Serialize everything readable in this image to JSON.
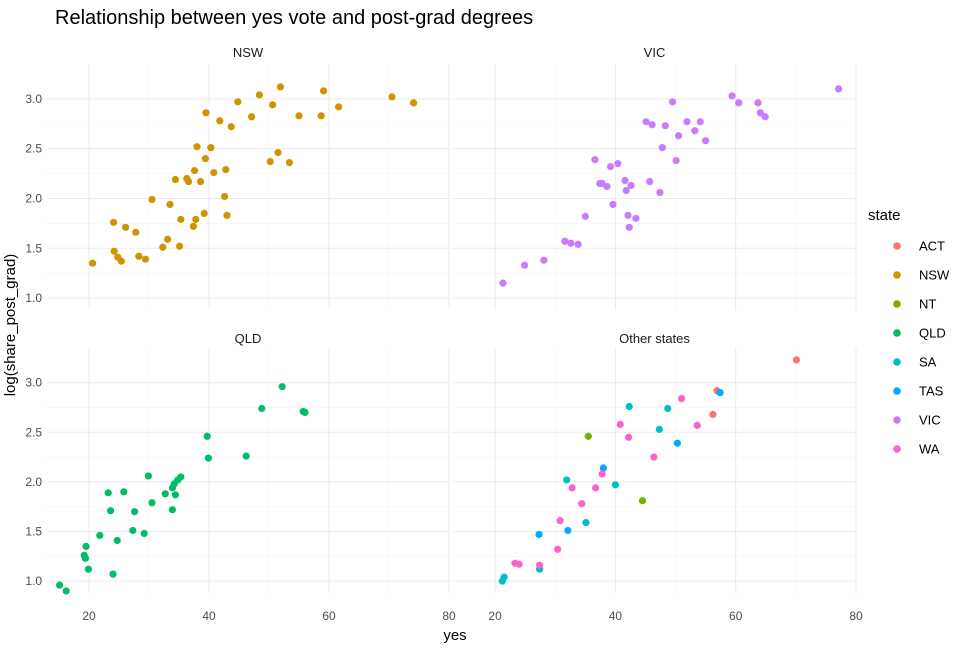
{
  "chart_data": {
    "type": "scatter",
    "title": "Relationship between yes vote and post-grad degrees",
    "xlabel": "yes",
    "ylabel": "log(share_post_grad)",
    "xlim": [
      13,
      80
    ],
    "ylim": [
      0.88,
      3.35
    ],
    "x_ticks": [
      20,
      40,
      60,
      80
    ],
    "y_ticks": [
      1.0,
      1.5,
      2.0,
      2.5,
      3.0
    ],
    "x_tick_labels": [
      "20",
      "40",
      "60",
      "80"
    ],
    "y_tick_labels": [
      "1.0",
      "1.5",
      "2.0",
      "2.5",
      "3.0"
    ],
    "grid": true,
    "legend_position": "right",
    "legend_title": "state",
    "legend": [
      {
        "name": "ACT",
        "color": "#F8766D"
      },
      {
        "name": "NSW",
        "color": "#CD9600"
      },
      {
        "name": "NT",
        "color": "#7CAE00"
      },
      {
        "name": "QLD",
        "color": "#00BE67"
      },
      {
        "name": "SA",
        "color": "#00BFC4"
      },
      {
        "name": "TAS",
        "color": "#00A9FF"
      },
      {
        "name": "VIC",
        "color": "#C77CFF"
      },
      {
        "name": "WA",
        "color": "#FF61CC"
      }
    ],
    "facets": [
      {
        "label": "NSW",
        "points": [
          {
            "x": 20.6,
            "y": 1.35,
            "state": "NSW"
          },
          {
            "x": 24.1,
            "y": 1.76,
            "state": "NSW"
          },
          {
            "x": 24.2,
            "y": 1.47,
            "state": "NSW"
          },
          {
            "x": 24.8,
            "y": 1.41,
            "state": "NSW"
          },
          {
            "x": 25.4,
            "y": 1.37,
            "state": "NSW"
          },
          {
            "x": 26.1,
            "y": 1.71,
            "state": "NSW"
          },
          {
            "x": 27.8,
            "y": 1.66,
            "state": "NSW"
          },
          {
            "x": 28.3,
            "y": 1.42,
            "state": "NSW"
          },
          {
            "x": 29.4,
            "y": 1.39,
            "state": "NSW"
          },
          {
            "x": 30.5,
            "y": 1.99,
            "state": "NSW"
          },
          {
            "x": 32.3,
            "y": 1.51,
            "state": "NSW"
          },
          {
            "x": 33.1,
            "y": 1.59,
            "state": "NSW"
          },
          {
            "x": 33.5,
            "y": 1.94,
            "state": "NSW"
          },
          {
            "x": 34.4,
            "y": 2.19,
            "state": "NSW"
          },
          {
            "x": 35.1,
            "y": 1.52,
            "state": "NSW"
          },
          {
            "x": 35.3,
            "y": 1.79,
            "state": "NSW"
          },
          {
            "x": 36.3,
            "y": 2.2,
            "state": "NSW"
          },
          {
            "x": 36.6,
            "y": 2.17,
            "state": "NSW"
          },
          {
            "x": 37.4,
            "y": 1.72,
            "state": "NSW"
          },
          {
            "x": 37.6,
            "y": 2.28,
            "state": "NSW"
          },
          {
            "x": 37.8,
            "y": 1.79,
            "state": "NSW"
          },
          {
            "x": 38.0,
            "y": 2.52,
            "state": "NSW"
          },
          {
            "x": 38.6,
            "y": 2.17,
            "state": "NSW"
          },
          {
            "x": 39.2,
            "y": 1.85,
            "state": "NSW"
          },
          {
            "x": 39.4,
            "y": 2.4,
            "state": "NSW"
          },
          {
            "x": 39.5,
            "y": 2.86,
            "state": "NSW"
          },
          {
            "x": 40.3,
            "y": 2.51,
            "state": "NSW"
          },
          {
            "x": 40.8,
            "y": 2.26,
            "state": "NSW"
          },
          {
            "x": 41.8,
            "y": 2.78,
            "state": "NSW"
          },
          {
            "x": 42.6,
            "y": 2.02,
            "state": "NSW"
          },
          {
            "x": 42.8,
            "y": 2.29,
            "state": "NSW"
          },
          {
            "x": 43.0,
            "y": 1.83,
            "state": "NSW"
          },
          {
            "x": 43.7,
            "y": 2.72,
            "state": "NSW"
          },
          {
            "x": 44.8,
            "y": 2.97,
            "state": "NSW"
          },
          {
            "x": 47.1,
            "y": 2.82,
            "state": "NSW"
          },
          {
            "x": 48.4,
            "y": 3.04,
            "state": "NSW"
          },
          {
            "x": 50.2,
            "y": 2.37,
            "state": "NSW"
          },
          {
            "x": 50.6,
            "y": 2.94,
            "state": "NSW"
          },
          {
            "x": 51.5,
            "y": 2.46,
            "state": "NSW"
          },
          {
            "x": 51.9,
            "y": 3.12,
            "state": "NSW"
          },
          {
            "x": 53.4,
            "y": 2.36,
            "state": "NSW"
          },
          {
            "x": 55.0,
            "y": 2.83,
            "state": "NSW"
          },
          {
            "x": 58.7,
            "y": 2.83,
            "state": "NSW"
          },
          {
            "x": 59.1,
            "y": 3.08,
            "state": "NSW"
          },
          {
            "x": 61.6,
            "y": 2.92,
            "state": "NSW"
          },
          {
            "x": 70.5,
            "y": 3.02,
            "state": "NSW"
          },
          {
            "x": 74.1,
            "y": 2.96,
            "state": "NSW"
          }
        ]
      },
      {
        "label": "VIC",
        "points": [
          {
            "x": 21.3,
            "y": 1.15,
            "state": "VIC"
          },
          {
            "x": 24.9,
            "y": 1.33,
            "state": "VIC"
          },
          {
            "x": 28.1,
            "y": 1.38,
            "state": "VIC"
          },
          {
            "x": 31.6,
            "y": 1.57,
            "state": "VIC"
          },
          {
            "x": 32.6,
            "y": 1.55,
            "state": "VIC"
          },
          {
            "x": 33.8,
            "y": 1.54,
            "state": "VIC"
          },
          {
            "x": 35.0,
            "y": 1.82,
            "state": "VIC"
          },
          {
            "x": 36.6,
            "y": 2.39,
            "state": "VIC"
          },
          {
            "x": 37.4,
            "y": 2.15,
            "state": "VIC"
          },
          {
            "x": 37.8,
            "y": 2.15,
            "state": "VIC"
          },
          {
            "x": 38.6,
            "y": 2.12,
            "state": "VIC"
          },
          {
            "x": 39.2,
            "y": 2.32,
            "state": "VIC"
          },
          {
            "x": 39.6,
            "y": 1.94,
            "state": "VIC"
          },
          {
            "x": 40.4,
            "y": 2.35,
            "state": "VIC"
          },
          {
            "x": 41.6,
            "y": 2.18,
            "state": "VIC"
          },
          {
            "x": 41.8,
            "y": 2.08,
            "state": "VIC"
          },
          {
            "x": 42.1,
            "y": 1.83,
            "state": "VIC"
          },
          {
            "x": 42.3,
            "y": 1.71,
            "state": "VIC"
          },
          {
            "x": 42.6,
            "y": 2.13,
            "state": "VIC"
          },
          {
            "x": 43.4,
            "y": 1.8,
            "state": "VIC"
          },
          {
            "x": 45.1,
            "y": 2.77,
            "state": "VIC"
          },
          {
            "x": 45.7,
            "y": 2.17,
            "state": "VIC"
          },
          {
            "x": 46.1,
            "y": 2.74,
            "state": "VIC"
          },
          {
            "x": 47.4,
            "y": 2.06,
            "state": "VIC"
          },
          {
            "x": 47.8,
            "y": 2.51,
            "state": "VIC"
          },
          {
            "x": 48.3,
            "y": 2.73,
            "state": "VIC"
          },
          {
            "x": 49.5,
            "y": 2.97,
            "state": "VIC"
          },
          {
            "x": 50.1,
            "y": 2.38,
            "state": "VIC"
          },
          {
            "x": 50.5,
            "y": 2.63,
            "state": "VIC"
          },
          {
            "x": 51.9,
            "y": 2.77,
            "state": "VIC"
          },
          {
            "x": 53.2,
            "y": 2.68,
            "state": "VIC"
          },
          {
            "x": 54.1,
            "y": 2.77,
            "state": "VIC"
          },
          {
            "x": 55.0,
            "y": 2.58,
            "state": "VIC"
          },
          {
            "x": 59.4,
            "y": 3.03,
            "state": "VIC"
          },
          {
            "x": 60.5,
            "y": 2.96,
            "state": "VIC"
          },
          {
            "x": 63.7,
            "y": 2.96,
            "state": "VIC"
          },
          {
            "x": 64.1,
            "y": 2.86,
            "state": "VIC"
          },
          {
            "x": 64.9,
            "y": 2.82,
            "state": "VIC"
          },
          {
            "x": 77.1,
            "y": 3.1,
            "state": "VIC"
          }
        ]
      },
      {
        "label": "QLD",
        "points": [
          {
            "x": 15.1,
            "y": 0.96,
            "state": "QLD"
          },
          {
            "x": 16.2,
            "y": 0.9,
            "state": "QLD"
          },
          {
            "x": 19.2,
            "y": 1.26,
            "state": "QLD"
          },
          {
            "x": 19.4,
            "y": 1.23,
            "state": "QLD"
          },
          {
            "x": 19.5,
            "y": 1.35,
            "state": "QLD"
          },
          {
            "x": 19.9,
            "y": 1.12,
            "state": "QLD"
          },
          {
            "x": 21.8,
            "y": 1.46,
            "state": "QLD"
          },
          {
            "x": 23.2,
            "y": 1.89,
            "state": "QLD"
          },
          {
            "x": 23.6,
            "y": 1.71,
            "state": "QLD"
          },
          {
            "x": 24.0,
            "y": 1.07,
            "state": "QLD"
          },
          {
            "x": 24.7,
            "y": 1.41,
            "state": "QLD"
          },
          {
            "x": 25.8,
            "y": 1.9,
            "state": "QLD"
          },
          {
            "x": 27.3,
            "y": 1.51,
            "state": "QLD"
          },
          {
            "x": 27.6,
            "y": 1.7,
            "state": "QLD"
          },
          {
            "x": 29.2,
            "y": 1.48,
            "state": "QLD"
          },
          {
            "x": 29.9,
            "y": 2.06,
            "state": "QLD"
          },
          {
            "x": 30.5,
            "y": 1.79,
            "state": "QLD"
          },
          {
            "x": 32.7,
            "y": 1.88,
            "state": "QLD"
          },
          {
            "x": 33.9,
            "y": 1.94,
            "state": "QLD"
          },
          {
            "x": 33.9,
            "y": 1.72,
            "state": "QLD"
          },
          {
            "x": 34.2,
            "y": 1.98,
            "state": "QLD"
          },
          {
            "x": 34.4,
            "y": 1.87,
            "state": "QLD"
          },
          {
            "x": 34.8,
            "y": 2.02,
            "state": "QLD"
          },
          {
            "x": 35.3,
            "y": 2.05,
            "state": "QLD"
          },
          {
            "x": 39.7,
            "y": 2.46,
            "state": "QLD"
          },
          {
            "x": 39.9,
            "y": 2.24,
            "state": "QLD"
          },
          {
            "x": 46.2,
            "y": 2.26,
            "state": "QLD"
          },
          {
            "x": 48.8,
            "y": 2.74,
            "state": "QLD"
          },
          {
            "x": 52.2,
            "y": 2.96,
            "state": "QLD"
          },
          {
            "x": 55.7,
            "y": 2.71,
            "state": "QLD"
          },
          {
            "x": 56.0,
            "y": 2.7,
            "state": "QLD"
          }
        ]
      },
      {
        "label": "Other states",
        "points": [
          {
            "x": 70.1,
            "y": 3.23,
            "state": "ACT"
          },
          {
            "x": 56.9,
            "y": 2.92,
            "state": "ACT"
          },
          {
            "x": 56.2,
            "y": 2.68,
            "state": "ACT"
          },
          {
            "x": 35.5,
            "y": 2.46,
            "state": "NT"
          },
          {
            "x": 44.5,
            "y": 1.81,
            "state": "NT"
          },
          {
            "x": 21.2,
            "y": 1.0,
            "state": "SA"
          },
          {
            "x": 21.5,
            "y": 1.04,
            "state": "SA"
          },
          {
            "x": 27.4,
            "y": 1.12,
            "state": "SA"
          },
          {
            "x": 31.9,
            "y": 2.02,
            "state": "SA"
          },
          {
            "x": 35.1,
            "y": 1.59,
            "state": "SA"
          },
          {
            "x": 40.0,
            "y": 1.97,
            "state": "SA"
          },
          {
            "x": 42.3,
            "y": 2.76,
            "state": "SA"
          },
          {
            "x": 47.3,
            "y": 2.53,
            "state": "SA"
          },
          {
            "x": 48.7,
            "y": 2.74,
            "state": "SA"
          },
          {
            "x": 27.3,
            "y": 1.47,
            "state": "TAS"
          },
          {
            "x": 32.1,
            "y": 1.51,
            "state": "TAS"
          },
          {
            "x": 38.0,
            "y": 2.14,
            "state": "TAS"
          },
          {
            "x": 50.3,
            "y": 2.39,
            "state": "TAS"
          },
          {
            "x": 57.4,
            "y": 2.9,
            "state": "TAS"
          },
          {
            "x": 23.3,
            "y": 1.18,
            "state": "WA"
          },
          {
            "x": 24.0,
            "y": 1.17,
            "state": "WA"
          },
          {
            "x": 27.4,
            "y": 1.16,
            "state": "WA"
          },
          {
            "x": 30.4,
            "y": 1.32,
            "state": "WA"
          },
          {
            "x": 30.8,
            "y": 1.61,
            "state": "WA"
          },
          {
            "x": 32.8,
            "y": 1.94,
            "state": "WA"
          },
          {
            "x": 34.4,
            "y": 1.78,
            "state": "WA"
          },
          {
            "x": 36.7,
            "y": 1.94,
            "state": "WA"
          },
          {
            "x": 37.8,
            "y": 2.08,
            "state": "WA"
          },
          {
            "x": 40.8,
            "y": 2.58,
            "state": "WA"
          },
          {
            "x": 42.2,
            "y": 2.45,
            "state": "WA"
          },
          {
            "x": 46.4,
            "y": 2.25,
            "state": "WA"
          },
          {
            "x": 51.0,
            "y": 2.84,
            "state": "WA"
          },
          {
            "x": 53.6,
            "y": 2.57,
            "state": "WA"
          }
        ]
      }
    ]
  }
}
